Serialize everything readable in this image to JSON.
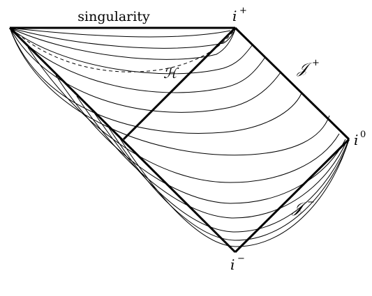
{
  "labels": {
    "singularity": "singularity",
    "i_plus": "i",
    "i_plus_sup": "+",
    "i_zero": "i",
    "i_zero_sup": "0",
    "i_minus": "i",
    "i_minus_sup": "−",
    "scri_plus": "𝒥",
    "scri_plus_sup": "+",
    "scri_minus": "𝒥",
    "scri_minus_sup": "−",
    "horizon": "ℋ"
  },
  "colors": {
    "stroke": "#000000",
    "background": "#ffffff"
  }
}
